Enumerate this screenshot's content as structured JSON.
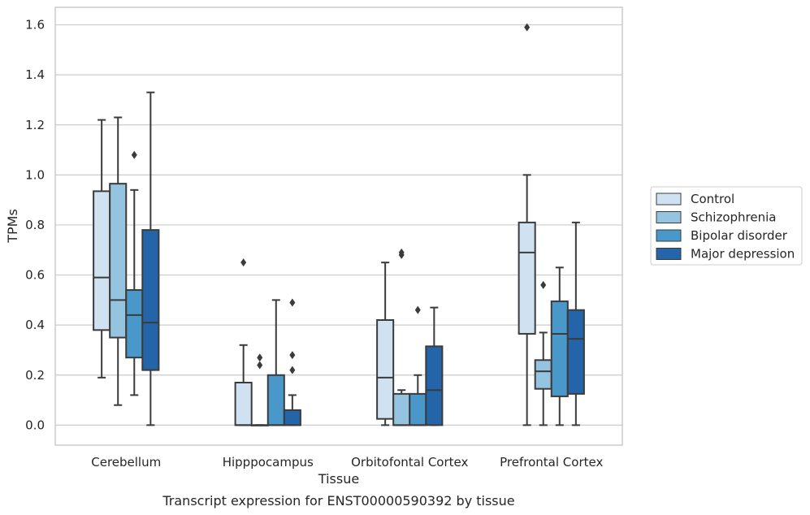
{
  "caption": "Transcript expression for ENST00000590392 by tissue",
  "chart_data": {
    "type": "box",
    "xlabel": "Tissue",
    "ylabel": "TPMs",
    "ylim": [
      -0.08,
      1.67
    ],
    "yticks": [
      "0.0",
      "0.2",
      "0.4",
      "0.6",
      "0.8",
      "1.0",
      "1.2",
      "1.4",
      "1.6"
    ],
    "grid": "horizontal",
    "legend_position": "right",
    "categories": [
      "Cerebellum",
      "Hipppocampus",
      "Orbitofontal Cortex",
      "Prefrontal Cortex"
    ],
    "series": [
      {
        "name": "Control",
        "color": "#d0e1f2",
        "boxes": [
          {
            "whislo": 0.19,
            "q1": 0.38,
            "med": 0.59,
            "q3": 0.935,
            "whishi": 1.22,
            "fliers": []
          },
          {
            "whislo": 0.0,
            "q1": 0.0,
            "med": 0.0,
            "q3": 0.17,
            "whishi": 0.32,
            "fliers": [
              0.65
            ]
          },
          {
            "whislo": 0.0,
            "q1": 0.025,
            "med": 0.19,
            "q3": 0.42,
            "whishi": 0.65,
            "fliers": []
          },
          {
            "whislo": 0.0,
            "q1": 0.365,
            "med": 0.69,
            "q3": 0.81,
            "whishi": 1.0,
            "fliers": [
              1.59
            ]
          }
        ]
      },
      {
        "name": "Schizophrenia",
        "color": "#94c4df",
        "boxes": [
          {
            "whislo": 0.08,
            "q1": 0.35,
            "med": 0.5,
            "q3": 0.965,
            "whishi": 1.23,
            "fliers": []
          },
          {
            "whislo": 0.0,
            "q1": 0.0,
            "med": 0.0,
            "q3": 0.0,
            "whishi": 0.0,
            "fliers": [
              0.24,
              0.27
            ]
          },
          {
            "whislo": 0.0,
            "q1": 0.0,
            "med": 0.0,
            "q3": 0.125,
            "whishi": 0.14,
            "fliers": [
              0.68,
              0.69
            ]
          },
          {
            "whislo": 0.0,
            "q1": 0.145,
            "med": 0.215,
            "q3": 0.26,
            "whishi": 0.37,
            "fliers": [
              0.56
            ]
          }
        ]
      },
      {
        "name": "Bipolar disorder",
        "color": "#4a98c9",
        "boxes": [
          {
            "whislo": 0.12,
            "q1": 0.27,
            "med": 0.44,
            "q3": 0.54,
            "whishi": 0.94,
            "fliers": [
              1.08
            ]
          },
          {
            "whislo": 0.0,
            "q1": 0.0,
            "med": 0.0,
            "q3": 0.2,
            "whishi": 0.5,
            "fliers": []
          },
          {
            "whislo": 0.0,
            "q1": 0.0,
            "med": 0.0,
            "q3": 0.125,
            "whishi": 0.2,
            "fliers": [
              0.46
            ]
          },
          {
            "whislo": 0.0,
            "q1": 0.115,
            "med": 0.365,
            "q3": 0.495,
            "whishi": 0.63,
            "fliers": []
          }
        ]
      },
      {
        "name": "Major depression",
        "color": "#2464a8",
        "boxes": [
          {
            "whislo": 0.0,
            "q1": 0.22,
            "med": 0.41,
            "q3": 0.78,
            "whishi": 1.33,
            "fliers": []
          },
          {
            "whislo": 0.0,
            "q1": 0.0,
            "med": 0.0,
            "q3": 0.06,
            "whishi": 0.12,
            "fliers": [
              0.22,
              0.28,
              0.49
            ]
          },
          {
            "whislo": 0.0,
            "q1": 0.0,
            "med": 0.14,
            "q3": 0.315,
            "whishi": 0.47,
            "fliers": []
          },
          {
            "whislo": 0.0,
            "q1": 0.125,
            "med": 0.345,
            "q3": 0.46,
            "whishi": 0.81,
            "fliers": []
          }
        ]
      }
    ]
  }
}
